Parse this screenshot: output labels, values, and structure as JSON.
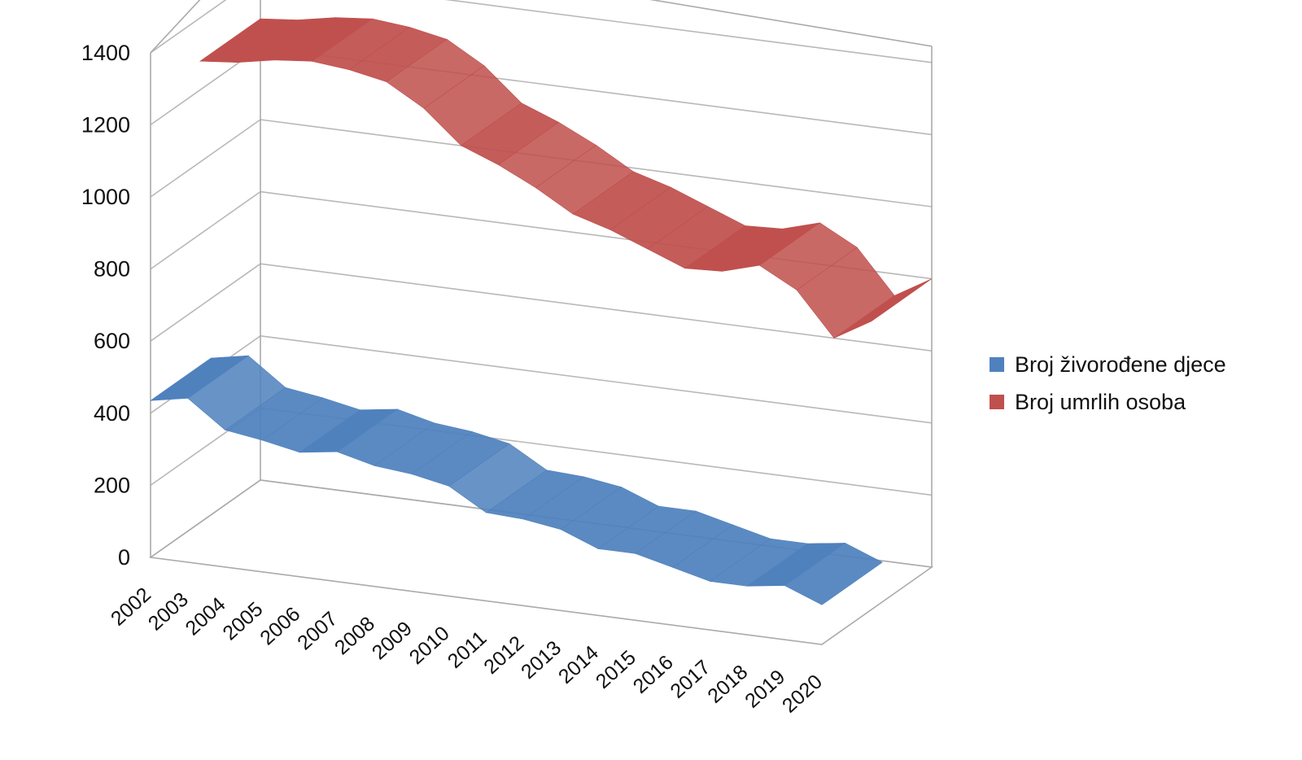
{
  "chart_data": {
    "type": "area",
    "view": "3d-ribbon",
    "title": "",
    "xlabel": "",
    "ylabel": "",
    "categories": [
      "2002",
      "2003",
      "2004",
      "2005",
      "2006",
      "2007",
      "2008",
      "2009",
      "2010",
      "2011",
      "2012",
      "2013",
      "2014",
      "2015",
      "2016",
      "2017",
      "2018",
      "2019",
      "2020"
    ],
    "y_ticks": [
      "0",
      "200",
      "400",
      "600",
      "800",
      "1000",
      "1200",
      "1400"
    ],
    "ylim": [
      0,
      1400
    ],
    "grid": true,
    "legend_position": "right",
    "series": [
      {
        "name": "Broj živorođene djece",
        "color": "#4f81bd",
        "values": [
          435,
          455,
          380,
          365,
          345,
          360,
          335,
          325,
          305,
          245,
          240,
          225,
          185,
          185,
          160,
          135,
          135,
          150,
          110
        ]
      },
      {
        "name": "Broj umrlih osoba",
        "color": "#c0504d",
        "values": [
          1280,
          1290,
          1310,
          1320,
          1310,
          1290,
          1230,
          1140,
          1100,
          1050,
          990,
          960,
          920,
          880,
          885,
          915,
          860,
          740,
          800
        ]
      }
    ]
  }
}
